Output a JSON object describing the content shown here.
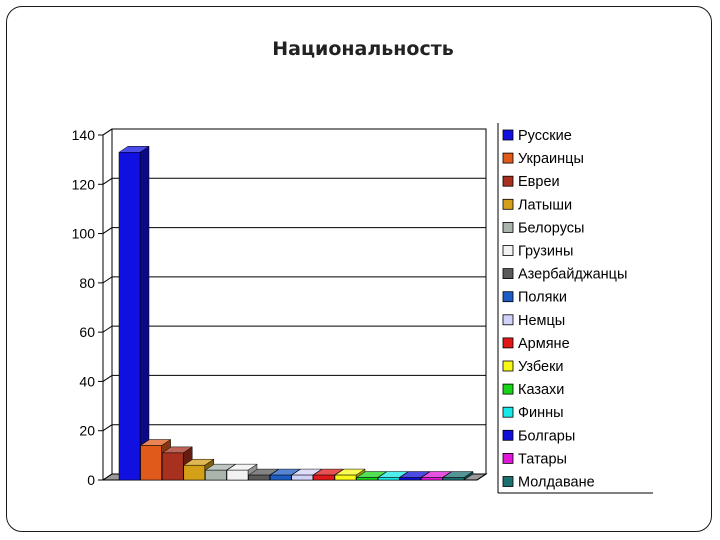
{
  "slide": {
    "title": "Национальность"
  },
  "chart_data": {
    "type": "bar",
    "categories": [
      "Русские",
      "Украинцы",
      "Евреи",
      "Латыши",
      "Белорусы",
      "Грузины",
      "Азербайджанцы",
      "Поляки",
      "Немцы",
      "Армяне",
      "Узбеки",
      "Казахи",
      "Финны",
      "Болгары",
      "Татары",
      "Молдаване"
    ],
    "values": [
      133,
      14,
      11,
      6,
      4,
      4,
      2,
      2,
      2,
      2,
      2,
      1,
      1,
      1,
      1,
      1
    ],
    "colors": [
      "#1010e0",
      "#e05a1c",
      "#a8301e",
      "#d4a017",
      "#a8b4ac",
      "#f2f2f2",
      "#5a5a5a",
      "#1c5cc4",
      "#d2d2f8",
      "#e01818",
      "#f8f818",
      "#18d418",
      "#18e8e8",
      "#1010d8",
      "#e018d8",
      "#1c7070"
    ],
    "title": "",
    "xlabel": "",
    "ylabel": "",
    "ylim": [
      0,
      140
    ],
    "yticks": [
      "0",
      "20",
      "40",
      "60",
      "80",
      "100",
      "120",
      "140"
    ],
    "grid": true,
    "legend": "right",
    "style": "3d"
  }
}
